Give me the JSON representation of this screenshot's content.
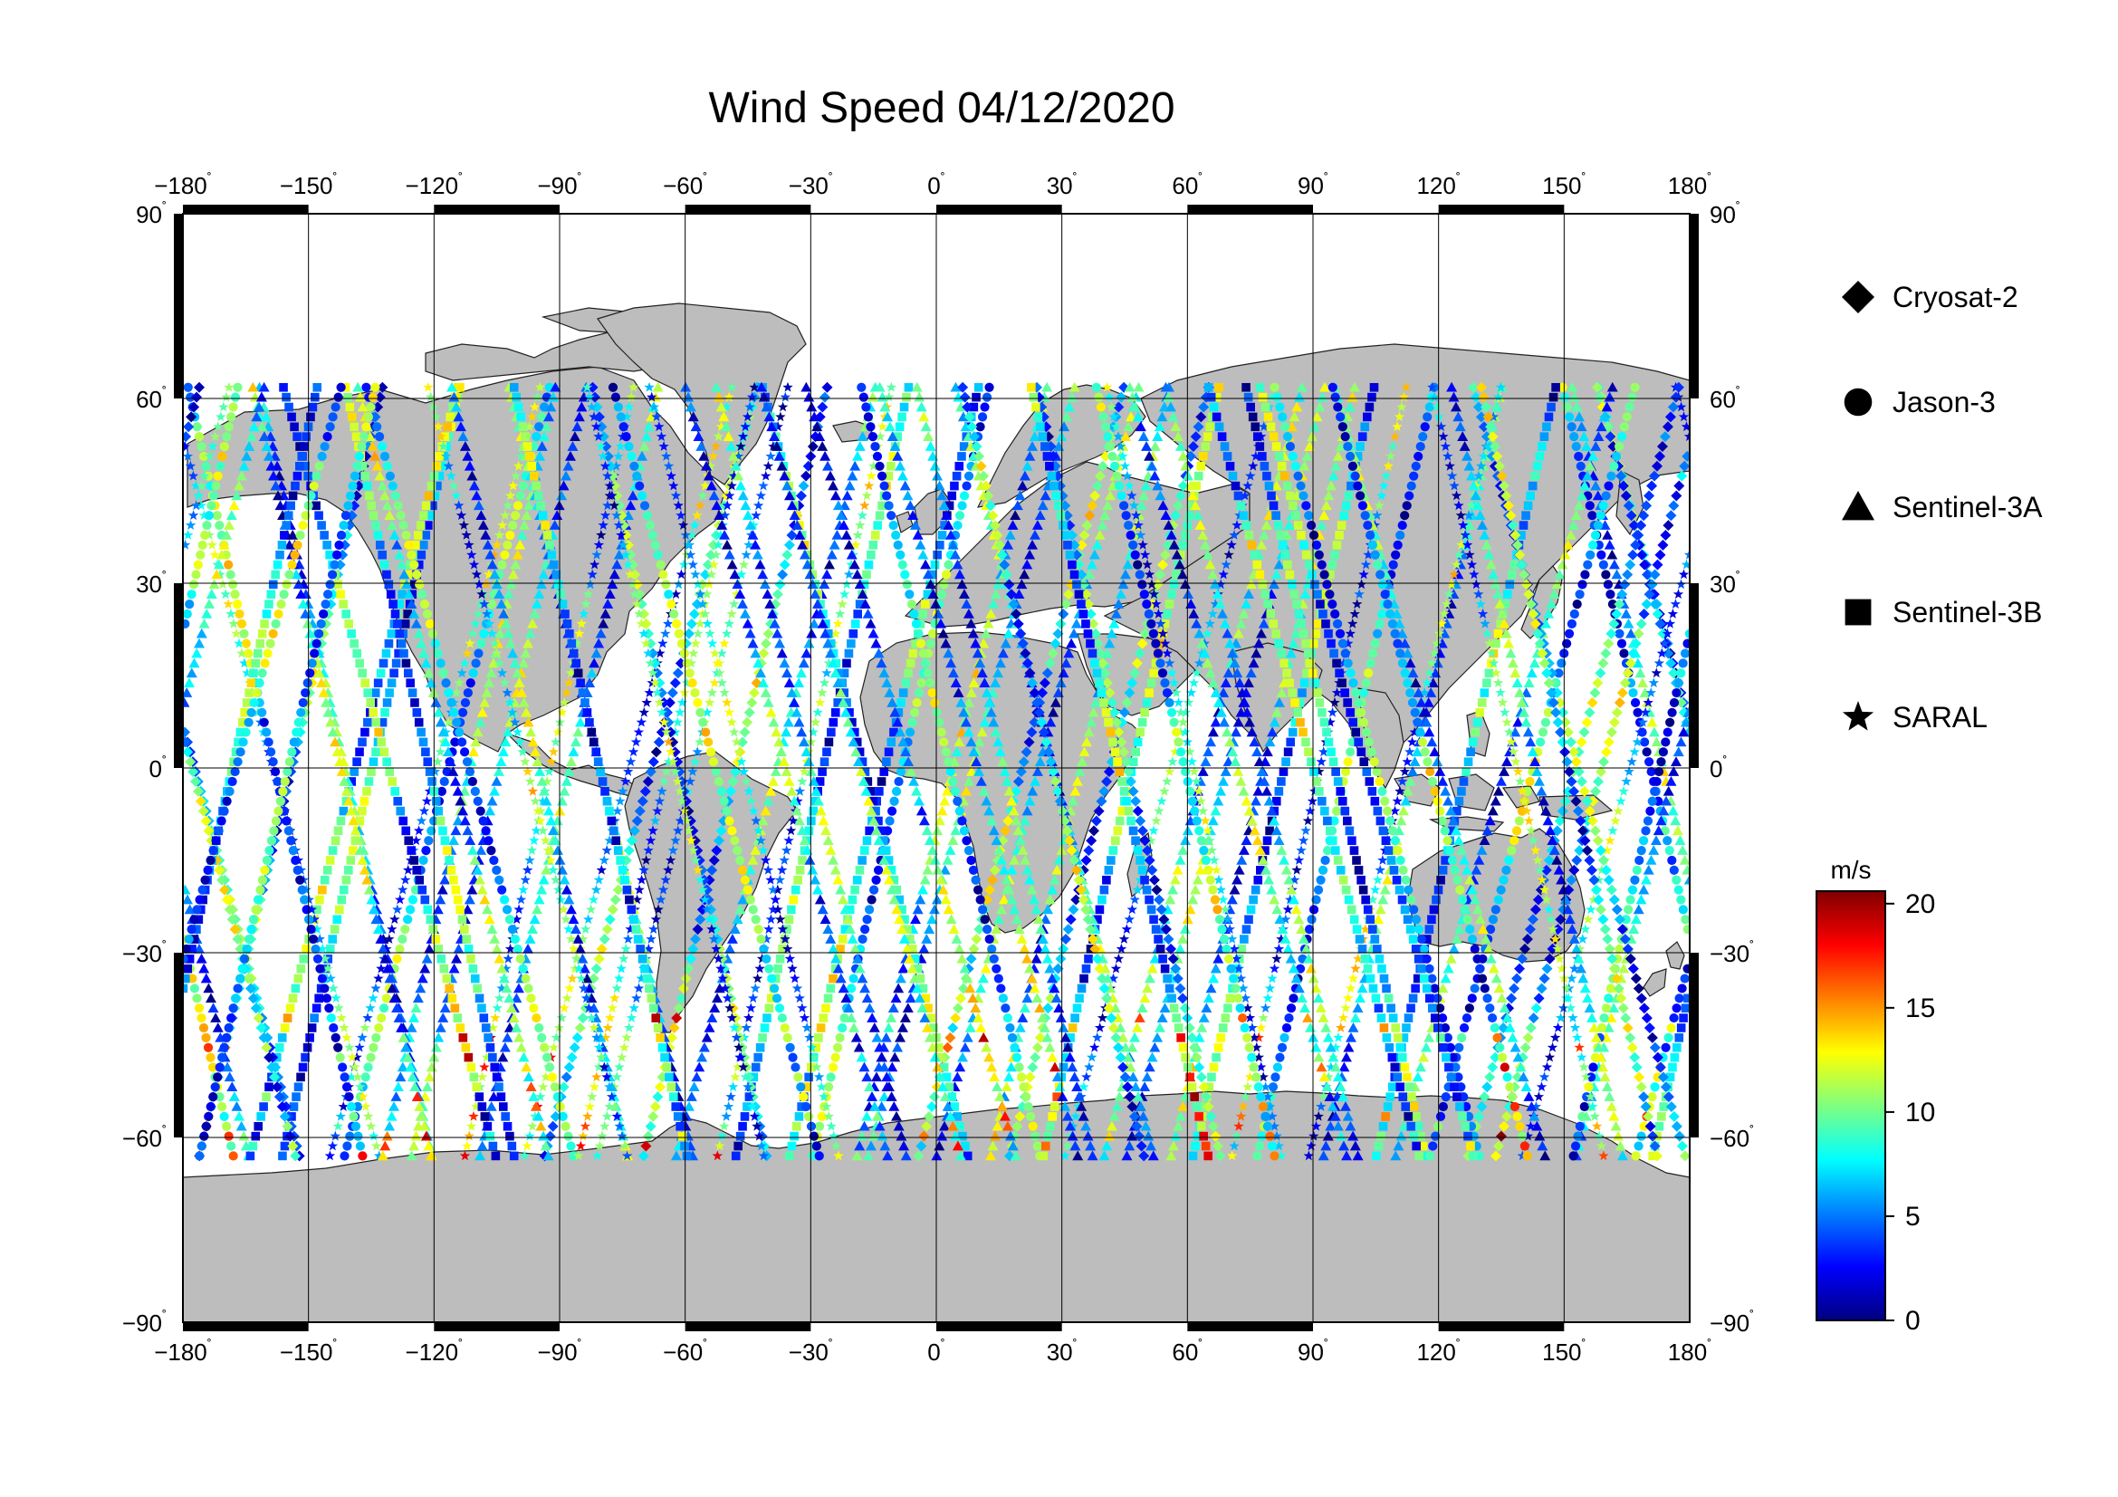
{
  "title": "Wind Speed 04/12/2020",
  "map": {
    "lon_ticks": [
      {
        "value": -180,
        "label": "−180"
      },
      {
        "value": -150,
        "label": "−150"
      },
      {
        "value": -120,
        "label": "−120"
      },
      {
        "value": -90,
        "label": "−90"
      },
      {
        "value": -60,
        "label": "−60"
      },
      {
        "value": -30,
        "label": "−30"
      },
      {
        "value": 0,
        "label": "0"
      },
      {
        "value": 30,
        "label": "30"
      },
      {
        "value": 60,
        "label": "60"
      },
      {
        "value": 90,
        "label": "90"
      },
      {
        "value": 120,
        "label": "120"
      },
      {
        "value": 150,
        "label": "150"
      },
      {
        "value": 180,
        "label": "180"
      }
    ],
    "lat_ticks": [
      {
        "value": 90,
        "label": "90"
      },
      {
        "value": 60,
        "label": "60"
      },
      {
        "value": 30,
        "label": "30"
      },
      {
        "value": 0,
        "label": "0"
      },
      {
        "value": -30,
        "label": "−30"
      },
      {
        "value": -60,
        "label": "−60"
      },
      {
        "value": -90,
        "label": "−90"
      }
    ],
    "degree_symbol": "˚",
    "land_color": "#bdbdbd",
    "ocean_color": "#ffffff"
  },
  "legend": {
    "items": [
      {
        "label": "Cryosat-2",
        "symbol": "diamond"
      },
      {
        "label": "Jason-3",
        "symbol": "circle"
      },
      {
        "label": "Sentinel-3A",
        "symbol": "triangle"
      },
      {
        "label": "Sentinel-3B",
        "symbol": "square"
      },
      {
        "label": "SARAL",
        "symbol": "star"
      }
    ]
  },
  "colorbar": {
    "unit": "m/s",
    "min": 0,
    "max": 20.6,
    "ticks": [
      {
        "value": 20,
        "label": "20"
      },
      {
        "value": 15,
        "label": "15"
      },
      {
        "value": 10,
        "label": "10"
      },
      {
        "value": 5,
        "label": "5"
      },
      {
        "value": 0,
        "label": "0"
      }
    ],
    "stops": [
      "#00007f",
      "#0000ff",
      "#007fff",
      "#00ffff",
      "#7fff7f",
      "#ffff00",
      "#ff7f00",
      "#ff0000",
      "#7f0000"
    ]
  }
}
